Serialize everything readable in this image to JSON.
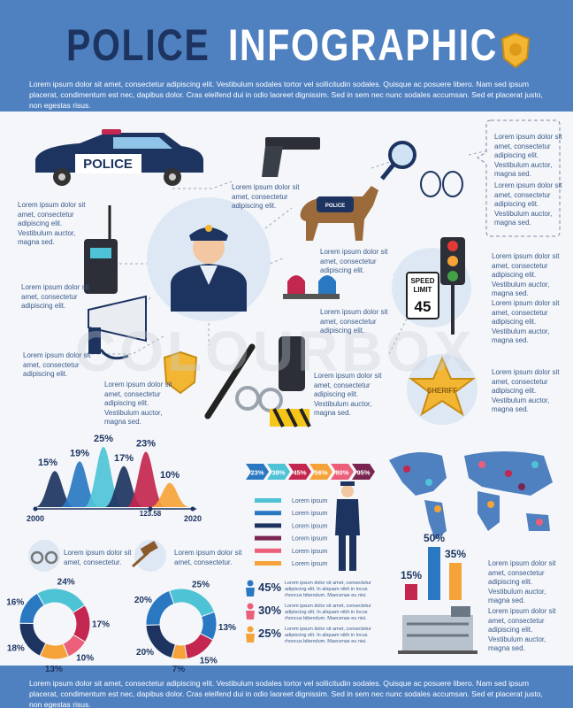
{
  "header": {
    "title_dark": "POLICE",
    "title_light": "INFOGRAPHIC",
    "text": "Lorem ipsum dolor sit amet, consectetur adipiscing elit. Vestibulum sodales tortor vel sollicitudin sodales. Quisque ac posuere libero. Nam sed ipsum placerat, condimentum est nec, dapibus dolor. Cras eleifend dui in odio laoreet dignissim. Sed in sem nec nunc sodales accumsan. Sed et placerat justo, non egestas risus."
  },
  "icons": {
    "car": "POLICE",
    "dog_vest": "POLICE",
    "speed_sign": {
      "line1": "SPEED",
      "line2": "LIMIT",
      "limit": "45"
    },
    "sheriff": "SHERIFF"
  },
  "watermark": "COLOURBOX",
  "callouts": [
    "Lorem ipsum dolor sit amet, consectetur adipiscing elit.",
    "Lorem ipsum dolor sit amet, consectetur adipiscing elit. Vestibulum auctor, magna sed.",
    "Lorem ipsum dolor sit amet, consectetur adipiscing elit. Vestibulum auctor, magna sed.",
    "Lorem ipsum dolor sit amet, consectetur adipiscing elit. Vestibulum auctor, magna sed.",
    "Lorem ipsum dolor sit amet, consectetur adipiscing elit.",
    "Lorem ipsum dolor sit amet, consectetur adipiscing elit.",
    "Lorem ipsum dolor sit amet, consectetur adipiscing elit.",
    "Lorem ipsum dolor sit amet, consectetur adipiscing elit.",
    "Lorem ipsum dolor sit amet, consectetur adipiscing elit. Vestibulum auctor, magna sed.",
    "Lorem ipsum dolor sit amet, consectetur adipiscing elit. Vestibulum auctor, magna sed.",
    "Lorem ipsum dolor sit amet, consectetur adipiscing elit. Vestibulum auctor, magna sed.",
    "Lorem ipsum dolor sit amet, consectetur adipiscing elit. Vestibulum auctor, magna sed.",
    "Lorem ipsum dolor sit amet, consectetur adipiscing elit. Vestibulum auctor, magna sed.",
    "Lorem ipsum dolor sit amet, consectetur.",
    "Lorem ipsum dolor sit amet, consectetur.",
    "Lorem ipsum dolor sit amet, consectetur adipiscing elit. Vestibulum auctor, magna sed.",
    "Lorem ipsum dolor sit amet, consectetur adipiscing elit. Vestibulum auctor, magna sed."
  ],
  "mountain_chart": {
    "values": [
      15,
      19,
      25,
      17,
      23,
      10
    ],
    "value_labels": [
      "15%",
      "19%",
      "25%",
      "17%",
      "23%",
      "10%"
    ],
    "colors": [
      "#1d3461",
      "#2a78c2",
      "#4fc3d6",
      "#1d3461",
      "#c3264e",
      "#f5a338"
    ],
    "x_labels": [
      "2000",
      "123.58",
      "2020"
    ]
  },
  "progress_arrows": {
    "values": [
      23,
      38,
      45,
      56,
      80,
      95
    ],
    "value_labels": [
      "23%",
      "38%",
      "45%",
      "56%",
      "80%",
      "95%"
    ],
    "colors": [
      "#2a78c2",
      "#4fc3d6",
      "#c3264e",
      "#f5a338",
      "#ec5f7a",
      "#7a2551"
    ]
  },
  "legend": {
    "items": [
      "Lorem ipsum",
      "Lorem ipsum",
      "Lorem ipsum",
      "Lorem ipsum",
      "Lorem ipsum",
      "Lorem ipsum"
    ],
    "colors": [
      "#4fc3d6",
      "#2a78c2",
      "#1d3461",
      "#7a2551",
      "#ec5f7a",
      "#f5a338"
    ]
  },
  "person_stats": {
    "values": [
      45,
      30,
      25
    ],
    "value_labels": [
      "45%",
      "30%",
      "25%"
    ],
    "colors": [
      "#2a78c2",
      "#ec5f7a",
      "#f5a338"
    ],
    "texts": [
      "Lorem ipsum dolor sit amet, consectetur adipiscing elit. In aliquam nibh in locus rhoncus bibendum. Maecenas eu nisi.",
      "Lorem ipsum dolor sit amet, consectetur adipiscing elit. In aliquam nibh in locus rhoncus bibendum. Maecenas eu nisi.",
      "Lorem ipsum dolor sit amet, consectetur adipiscing elit. In aliquam nibh in locus rhoncus bibendum. Maecenas eu nisi."
    ]
  },
  "bar_chart": {
    "values": [
      15,
      50,
      35
    ],
    "value_labels": [
      "15%",
      "50%",
      "35%"
    ],
    "colors": [
      "#c3264e",
      "#2a78c2",
      "#f5a338"
    ]
  },
  "donut_charts": [
    {
      "values": [
        24,
        17,
        10,
        13,
        18,
        16
      ],
      "value_labels": [
        "24%",
        "17%",
        "10%",
        "13%",
        "18%",
        "16%"
      ],
      "colors": [
        "#4fc3d6",
        "#c3264e",
        "#ec5f7a",
        "#f5a338",
        "#1d3461",
        "#2a78c2"
      ]
    },
    {
      "values": [
        25,
        13,
        15,
        7,
        20,
        20
      ],
      "value_labels": [
        "25%",
        "13%",
        "15%",
        "7%",
        "20%",
        "20%"
      ],
      "colors": [
        "#4fc3d6",
        "#2a78c2",
        "#c3264e",
        "#f5a338",
        "#1d3461",
        "#2a78c2"
      ]
    }
  ],
  "footer": {
    "text": "Lorem ipsum dolor sit amet, consectetur adipiscing elit. Vestibulum sodales tortor vel sollicitudin sodales. Quisque ac posuere libero. Nam sed ipsum placerat, condimentum est nec, dapibus dolor. Cras eleifend dui in odio laoreet dignissim. Sed in sem nec nunc sodales accumsan. Sed et placerat justo, non egestas risus."
  }
}
